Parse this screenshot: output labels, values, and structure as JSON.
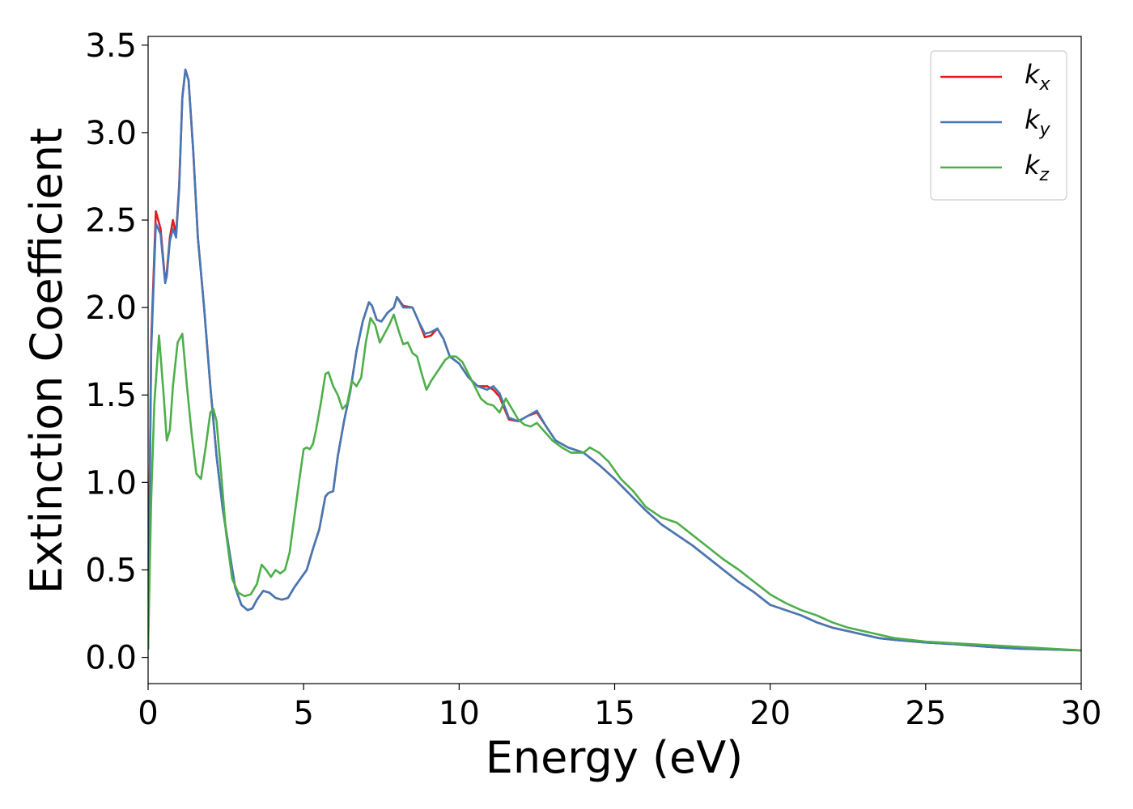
{
  "chart_data": {
    "type": "line",
    "title": "",
    "xlabel": "Energy (eV)",
    "ylabel": "Extinction Coefficient",
    "xlim": [
      0,
      30
    ],
    "ylim": [
      -0.15,
      3.55
    ],
    "xticks": [
      0,
      5,
      10,
      15,
      20,
      25,
      30
    ],
    "xtick_labels": [
      "0",
      "5",
      "10",
      "15",
      "20",
      "25",
      "30"
    ],
    "yticks": [
      0.0,
      0.5,
      1.0,
      1.5,
      2.0,
      2.5,
      3.0,
      3.5
    ],
    "ytick_labels": [
      "0.0",
      "0.5",
      "1.0",
      "1.5",
      "2.0",
      "2.5",
      "3.0",
      "3.5"
    ],
    "grid": false,
    "legend_position": "top-right",
    "series": [
      {
        "name": "k",
        "subscript": "x",
        "color": "#e41a1c",
        "x": [
          0,
          0.1,
          0.25,
          0.4,
          0.55,
          0.6,
          0.7,
          0.8,
          0.9,
          1.0,
          1.1,
          1.2,
          1.3,
          1.45,
          1.6,
          1.8,
          2.0,
          2.2,
          2.4,
          2.6,
          2.8,
          3.0,
          3.2,
          3.35,
          3.5,
          3.7,
          3.9,
          4.1,
          4.3,
          4.5,
          4.7,
          4.9,
          5.1,
          5.3,
          5.5,
          5.7,
          5.8,
          5.95,
          6.1,
          6.3,
          6.5,
          6.7,
          6.9,
          7.1,
          7.2,
          7.35,
          7.5,
          7.7,
          7.9,
          8.0,
          8.2,
          8.5,
          8.7,
          8.9,
          9.1,
          9.3,
          9.5,
          9.7,
          10.0,
          10.3,
          10.6,
          10.9,
          11.1,
          11.3,
          11.6,
          11.9,
          12.2,
          12.5,
          12.8,
          13.1,
          13.5,
          14.0,
          14.5,
          15.0,
          15.5,
          16.0,
          16.5,
          17.0,
          17.5,
          18.0,
          18.5,
          19.0,
          19.5,
          20.0,
          20.5,
          21.0,
          21.5,
          22.0,
          22.5,
          23.0,
          23.5,
          24.0,
          25.0,
          26.0,
          27.0,
          28.0,
          29.0,
          30.0
        ],
        "y": [
          0.05,
          1.8,
          2.55,
          2.45,
          2.15,
          2.2,
          2.4,
          2.5,
          2.42,
          2.7,
          3.2,
          3.36,
          3.3,
          2.9,
          2.4,
          2.0,
          1.55,
          1.15,
          0.85,
          0.62,
          0.4,
          0.3,
          0.27,
          0.28,
          0.33,
          0.38,
          0.37,
          0.34,
          0.33,
          0.34,
          0.4,
          0.45,
          0.5,
          0.62,
          0.73,
          0.92,
          0.94,
          0.95,
          1.15,
          1.35,
          1.52,
          1.75,
          1.92,
          2.03,
          2.01,
          1.93,
          1.92,
          1.97,
          2.0,
          2.06,
          2.01,
          2.0,
          1.92,
          1.83,
          1.84,
          1.88,
          1.82,
          1.72,
          1.68,
          1.6,
          1.55,
          1.55,
          1.53,
          1.49,
          1.36,
          1.35,
          1.38,
          1.4,
          1.32,
          1.24,
          1.2,
          1.17,
          1.1,
          1.02,
          0.93,
          0.84,
          0.76,
          0.7,
          0.64,
          0.57,
          0.5,
          0.43,
          0.37,
          0.3,
          0.27,
          0.24,
          0.2,
          0.17,
          0.15,
          0.13,
          0.11,
          0.1,
          0.085,
          0.075,
          0.06,
          0.05,
          0.045,
          0.04
        ]
      },
      {
        "name": "k",
        "subscript": "y",
        "color": "#4479b6",
        "x": [
          0,
          0.1,
          0.25,
          0.4,
          0.55,
          0.6,
          0.7,
          0.8,
          0.9,
          1.0,
          1.1,
          1.2,
          1.3,
          1.45,
          1.6,
          1.8,
          2.0,
          2.2,
          2.4,
          2.6,
          2.8,
          3.0,
          3.2,
          3.35,
          3.5,
          3.7,
          3.9,
          4.1,
          4.3,
          4.5,
          4.7,
          4.9,
          5.1,
          5.3,
          5.5,
          5.7,
          5.8,
          5.95,
          6.1,
          6.3,
          6.5,
          6.7,
          6.9,
          7.1,
          7.2,
          7.35,
          7.5,
          7.7,
          7.9,
          8.0,
          8.2,
          8.5,
          8.7,
          8.9,
          9.1,
          9.3,
          9.5,
          9.7,
          10.0,
          10.3,
          10.6,
          10.9,
          11.1,
          11.3,
          11.6,
          11.9,
          12.2,
          12.5,
          12.8,
          13.1,
          13.5,
          14.0,
          14.5,
          15.0,
          15.5,
          16.0,
          16.5,
          17.0,
          17.5,
          18.0,
          18.5,
          19.0,
          19.5,
          20.0,
          20.5,
          21.0,
          21.5,
          22.0,
          22.5,
          23.0,
          23.5,
          24.0,
          25.0,
          26.0,
          27.0,
          28.0,
          29.0,
          30.0
        ],
        "y": [
          0.05,
          1.75,
          2.48,
          2.42,
          2.14,
          2.18,
          2.38,
          2.45,
          2.4,
          2.68,
          3.2,
          3.36,
          3.3,
          2.9,
          2.4,
          2.0,
          1.55,
          1.15,
          0.85,
          0.62,
          0.4,
          0.3,
          0.27,
          0.28,
          0.33,
          0.38,
          0.37,
          0.34,
          0.33,
          0.34,
          0.4,
          0.45,
          0.5,
          0.62,
          0.73,
          0.92,
          0.94,
          0.95,
          1.15,
          1.35,
          1.52,
          1.75,
          1.92,
          2.03,
          2.01,
          1.93,
          1.92,
          1.97,
          2.0,
          2.06,
          2.0,
          2.0,
          1.92,
          1.85,
          1.86,
          1.88,
          1.82,
          1.72,
          1.68,
          1.6,
          1.55,
          1.53,
          1.55,
          1.51,
          1.37,
          1.35,
          1.38,
          1.41,
          1.32,
          1.24,
          1.2,
          1.17,
          1.1,
          1.02,
          0.93,
          0.84,
          0.76,
          0.7,
          0.64,
          0.57,
          0.5,
          0.43,
          0.37,
          0.3,
          0.27,
          0.24,
          0.2,
          0.17,
          0.15,
          0.13,
          0.11,
          0.1,
          0.085,
          0.075,
          0.06,
          0.05,
          0.045,
          0.04
        ]
      },
      {
        "name": "k",
        "subscript": "z",
        "color": "#4daf4a",
        "x": [
          0,
          0.1,
          0.2,
          0.35,
          0.5,
          0.6,
          0.7,
          0.8,
          0.95,
          1.1,
          1.25,
          1.4,
          1.55,
          1.7,
          1.85,
          2.0,
          2.1,
          2.2,
          2.35,
          2.5,
          2.7,
          2.9,
          3.1,
          3.3,
          3.5,
          3.65,
          3.8,
          3.95,
          4.1,
          4.25,
          4.4,
          4.55,
          4.7,
          4.85,
          5.0,
          5.1,
          5.2,
          5.3,
          5.4,
          5.55,
          5.7,
          5.8,
          5.95,
          6.1,
          6.25,
          6.4,
          6.55,
          6.7,
          6.85,
          7.0,
          7.15,
          7.3,
          7.45,
          7.6,
          7.75,
          7.9,
          8.05,
          8.2,
          8.35,
          8.5,
          8.65,
          8.8,
          8.95,
          9.1,
          9.25,
          9.4,
          9.55,
          9.7,
          9.9,
          10.1,
          10.3,
          10.5,
          10.7,
          10.9,
          11.1,
          11.3,
          11.5,
          11.7,
          11.9,
          12.1,
          12.3,
          12.5,
          12.7,
          13.0,
          13.3,
          13.6,
          14.0,
          14.2,
          14.5,
          14.8,
          15.2,
          15.6,
          16.0,
          16.5,
          17.0,
          17.5,
          18.0,
          18.5,
          19.0,
          19.5,
          20.0,
          20.5,
          21.0,
          21.5,
          22.0,
          22.5,
          23.0,
          23.5,
          24.0,
          25.0,
          26.0,
          27.0,
          28.0,
          29.0,
          30.0
        ],
        "y": [
          0.05,
          0.9,
          1.45,
          1.84,
          1.5,
          1.24,
          1.3,
          1.55,
          1.8,
          1.85,
          1.55,
          1.28,
          1.05,
          1.02,
          1.2,
          1.4,
          1.42,
          1.35,
          1.05,
          0.72,
          0.45,
          0.37,
          0.35,
          0.36,
          0.42,
          0.53,
          0.5,
          0.46,
          0.5,
          0.48,
          0.5,
          0.6,
          0.8,
          1.0,
          1.19,
          1.2,
          1.19,
          1.22,
          1.3,
          1.45,
          1.62,
          1.63,
          1.55,
          1.5,
          1.42,
          1.45,
          1.58,
          1.55,
          1.6,
          1.8,
          1.94,
          1.9,
          1.8,
          1.85,
          1.9,
          1.96,
          1.87,
          1.79,
          1.8,
          1.74,
          1.72,
          1.62,
          1.53,
          1.58,
          1.62,
          1.66,
          1.7,
          1.72,
          1.72,
          1.69,
          1.62,
          1.55,
          1.48,
          1.45,
          1.44,
          1.4,
          1.48,
          1.42,
          1.36,
          1.33,
          1.32,
          1.34,
          1.3,
          1.24,
          1.2,
          1.17,
          1.17,
          1.2,
          1.17,
          1.12,
          1.02,
          0.95,
          0.86,
          0.8,
          0.77,
          0.7,
          0.63,
          0.56,
          0.5,
          0.43,
          0.36,
          0.31,
          0.27,
          0.24,
          0.2,
          0.17,
          0.15,
          0.13,
          0.11,
          0.09,
          0.08,
          0.07,
          0.06,
          0.05,
          0.04
        ]
      }
    ]
  }
}
